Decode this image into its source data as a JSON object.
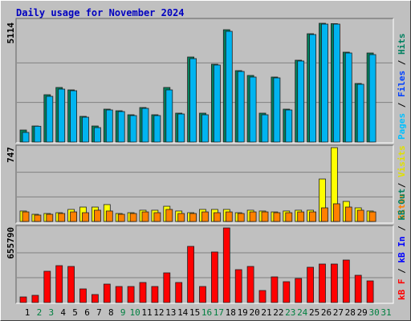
{
  "chart_data": {
    "type": "bar",
    "title": "Daily usage for November 2024",
    "title_color": "#0000c0",
    "categories": [
      "1",
      "2",
      "3",
      "4",
      "5",
      "6",
      "7",
      "8",
      "9",
      "10",
      "11",
      "12",
      "13",
      "14",
      "15",
      "16",
      "17",
      "18",
      "19",
      "20",
      "21",
      "22",
      "23",
      "24",
      "25",
      "26",
      "27",
      "28",
      "29",
      "30",
      "31"
    ],
    "label_colors": [
      "#000000",
      "#008040",
      "#008040",
      "#000000",
      "#000000",
      "#000000",
      "#000000",
      "#000000",
      "#008040",
      "#008040",
      "#000000",
      "#000000",
      "#000000",
      "#000000",
      "#000000",
      "#008040",
      "#008040",
      "#000000",
      "#000000",
      "#000000",
      "#000000",
      "#000000",
      "#008040",
      "#008040",
      "#000000",
      "#000000",
      "#000000",
      "#000000",
      "#000000",
      "#008040",
      "#008040"
    ],
    "panels": [
      {
        "ylim": [
          0,
          5114
        ],
        "yticks": [
          5114
        ],
        "series": [
          {
            "color": "#00805c",
            "values": [
              518,
              691,
              2038,
              2350,
              2246,
              1106,
              691,
              1417,
              1347,
              1175,
              1486,
              1175,
              2350,
              1244,
              3662,
              1244,
              3351,
              4837,
              3075,
              2868,
              1244,
              2799,
              1417,
              3524,
              4664,
              5114,
              5098,
              3870,
              2522,
              3835,
              null
            ]
          },
          {
            "color": "#00b4f0",
            "values": [
              415,
              680,
              1969,
              2280,
              2211,
              1071,
              622,
              1382,
              1313,
              1140,
              1451,
              1140,
              2246,
              1209,
              3593,
              1175,
              3317,
              4768,
              3040,
              2799,
              1175,
              2764,
              1382,
              3490,
              4630,
              5079,
              5079,
              3835,
              2488,
              3766,
              null
            ]
          }
        ],
        "side_label": [
          {
            "text": "Pages",
            "color": "#00c0ff"
          },
          {
            "text": " / ",
            "color": "#000000"
          },
          {
            "text": "Files",
            "color": "#0040ff"
          },
          {
            "text": " / ",
            "color": "#000000"
          },
          {
            "text": "Hits",
            "color": "#008060"
          }
        ]
      },
      {
        "ylim": [
          0,
          747
        ],
        "yticks": [
          747
        ],
        "series": [
          {
            "color": "#ffff00",
            "values": [
              106,
              73,
              81,
              89,
              122,
              146,
              146,
              171,
              81,
              89,
              114,
              114,
              154,
              106,
              89,
              122,
              122,
              122,
              89,
              114,
              106,
              97,
              106,
              114,
              114,
              430,
              747,
              203,
              138,
              106,
              null
            ]
          },
          {
            "color": "#ff8000",
            "values": [
              97,
              65,
              73,
              81,
              97,
              89,
              114,
              106,
              73,
              81,
              97,
              89,
              122,
              81,
              81,
              97,
              89,
              97,
              81,
              97,
              97,
              89,
              89,
              97,
              97,
              138,
              179,
              146,
              114,
              97,
              null
            ]
          }
        ],
        "side_label": [
          {
            "text": "Sites",
            "color": "#ff8000"
          },
          {
            "text": " / ",
            "color": "#000000"
          },
          {
            "text": "Visits",
            "color": "#e0e000"
          }
        ]
      },
      {
        "ylim": [
          0,
          655790
        ],
        "yticks": [
          655790
        ],
        "series": [
          {
            "color": "#ff0000",
            "values": [
              49360,
              63460,
              275000,
              324350,
              317300,
              119870,
              70510,
              162170,
              141020,
              141020,
              176280,
              141020,
              260890,
              176280,
              493570,
              141020,
              444210,
              655790,
              289090,
              317300,
              105770,
              225630,
              183330,
              211530,
              310240,
              338450,
              338450,
              373700,
              239730,
              190380,
              null
            ]
          }
        ],
        "side_label": [
          {
            "text": "kB F",
            "color": "#ff0000"
          },
          {
            "text": " / ",
            "color": "#000000"
          },
          {
            "text": "kB In",
            "color": "#0000ff"
          },
          {
            "text": " / ",
            "color": "#000000"
          },
          {
            "text": "kB Out",
            "color": "#008060"
          }
        ]
      }
    ]
  }
}
